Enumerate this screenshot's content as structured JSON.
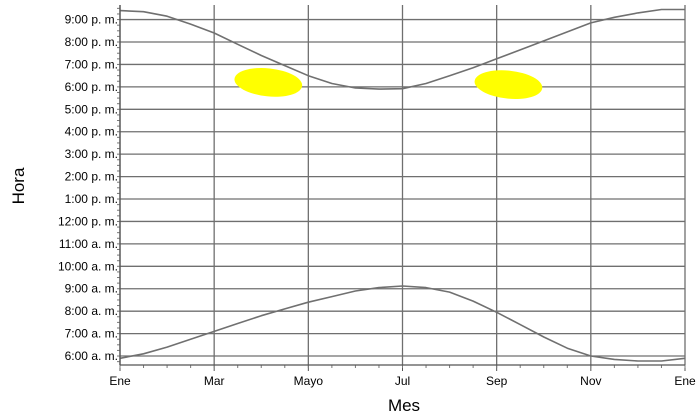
{
  "chart_data": {
    "type": "line",
    "title": "",
    "xlabel": "Mes",
    "ylabel": "Hora",
    "x_tick_labels": [
      "Ene",
      "Mar",
      "Mayo",
      "Jul",
      "Sep",
      "Nov",
      "Ene"
    ],
    "x_tick_months": [
      0,
      2,
      4,
      6,
      8,
      10,
      12
    ],
    "y_tick_labels": [
      "9:00 p. m.",
      "8:00 p. m.",
      "7:00 p. m.",
      "6:00 p. m.",
      "5:00 p. m.",
      "4:00 p. m.",
      "3:00 p. m.",
      "2:00 p. m.",
      "1:00 p. m.",
      "12:00 p. m.",
      "11:00 a. m.",
      "10:00 a. m.",
      "9:00 a. m.",
      "8:00 a. m.",
      "7:00 a. m.",
      "6:00 a. m."
    ],
    "y_tick_hours": [
      21,
      20,
      19,
      18,
      17,
      16,
      15,
      14,
      13,
      12,
      11,
      10,
      9,
      8,
      7,
      6
    ],
    "xlim": [
      0,
      12
    ],
    "ylim": [
      5.6,
      21.65
    ],
    "grid": true,
    "series": [
      {
        "color": "#707070",
        "x": [
          0,
          0.5,
          1,
          1.5,
          2,
          2.5,
          3,
          3.5,
          4,
          4.5,
          5,
          5.5,
          6,
          6.5,
          7,
          7.5,
          8,
          8.5,
          9,
          9.5,
          10,
          10.5,
          11,
          11.5,
          12
        ],
        "y": [
          21.4,
          21.35,
          21.15,
          20.8,
          20.4,
          19.9,
          19.4,
          18.95,
          18.5,
          18.15,
          17.95,
          17.9,
          17.92,
          18.15,
          18.5,
          18.85,
          19.25,
          19.65,
          20.05,
          20.45,
          20.85,
          21.1,
          21.3,
          21.45,
          21.45
        ]
      },
      {
        "color": "#707070",
        "x": [
          0,
          0.5,
          1,
          1.5,
          2,
          2.5,
          3,
          3.5,
          4,
          4.5,
          5,
          5.5,
          6,
          6.5,
          7,
          7.5,
          8,
          8.5,
          9,
          9.5,
          10,
          10.5,
          11,
          11.5,
          12
        ],
        "y": [
          5.9,
          6.1,
          6.4,
          6.75,
          7.1,
          7.45,
          7.8,
          8.1,
          8.4,
          8.65,
          8.9,
          9.05,
          9.12,
          9.05,
          8.85,
          8.45,
          7.95,
          7.4,
          6.85,
          6.35,
          6.0,
          5.85,
          5.78,
          5.78,
          5.9
        ]
      }
    ],
    "highlights": [
      {
        "color": "#ffff00",
        "x": 3.15,
        "y": 18.2
      },
      {
        "color": "#ffff00",
        "x": 8.25,
        "y": 18.1
      }
    ]
  }
}
